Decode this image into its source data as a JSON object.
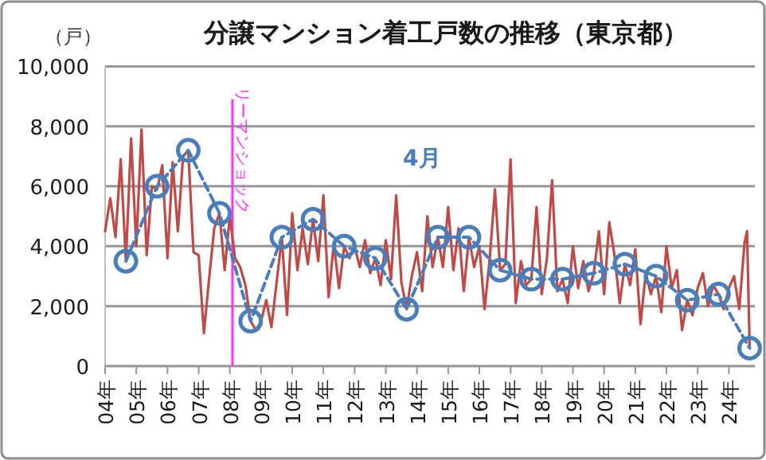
{
  "chart_data": {
    "type": "line",
    "title": "分譲マンション着工戸数の推移（東京都）",
    "ylabel": "（戸）",
    "xlim": [
      "2004-08",
      "2025-06"
    ],
    "xticks": [
      {
        "value": "2004-08",
        "label": "04年"
      },
      {
        "value": "2005-08",
        "label": "05年"
      },
      {
        "value": "2006-08",
        "label": "06年"
      },
      {
        "value": "2007-08",
        "label": "07年"
      },
      {
        "value": "2008-08",
        "label": "08年"
      },
      {
        "value": "2009-08",
        "label": "09年"
      },
      {
        "value": "2010-08",
        "label": "10年"
      },
      {
        "value": "2011-08",
        "label": "11年"
      },
      {
        "value": "2012-08",
        "label": "12年"
      },
      {
        "value": "2013-08",
        "label": "13年"
      },
      {
        "value": "2014-08",
        "label": "14年"
      },
      {
        "value": "2015-08",
        "label": "15年"
      },
      {
        "value": "2016-08",
        "label": "16年"
      },
      {
        "value": "2017-08",
        "label": "17年"
      },
      {
        "value": "2018-08",
        "label": "18年"
      },
      {
        "value": "2019-08",
        "label": "19年"
      },
      {
        "value": "2020-08",
        "label": "20年"
      },
      {
        "value": "2021-08",
        "label": "21年"
      },
      {
        "value": "2022-08",
        "label": "22年"
      },
      {
        "value": "2023-08",
        "label": "23年"
      },
      {
        "value": "2024-08",
        "label": "24年"
      }
    ],
    "ylim": [
      0,
      10000
    ],
    "yticks": [
      0,
      {
        "value": 2000,
        "label": "2,000"
      },
      {
        "value": 4000,
        "label": "4,000"
      },
      {
        "value": 6000,
        "label": "6,000"
      },
      {
        "value": 8000,
        "label": "8,000"
      },
      {
        "value": 10000,
        "label": "10,000"
      }
    ],
    "grid": "y",
    "ref_lines": [
      {
        "axis": "x",
        "value": "2008-09",
        "label": "リーマンショック",
        "color": "#ff33ff"
      }
    ],
    "series": [
      {
        "color": "#be4b48",
        "marker": "none",
        "line_style": "solid",
        "x": [
          "2004-08",
          "2004-10",
          "2004-12",
          "2005-02",
          "2005-04",
          "2005-06",
          "2005-08",
          "2005-10",
          "2005-12",
          "2006-02",
          "2006-04",
          "2006-06",
          "2006-08",
          "2006-10",
          "2006-12",
          "2007-02",
          "2007-04",
          "2007-06",
          "2007-08",
          "2007-10",
          "2007-12",
          "2008-02",
          "2008-04",
          "2008-06",
          "2008-08",
          "2008-10",
          "2008-12",
          "2009-02",
          "2009-04",
          "2009-06",
          "2009-08",
          "2009-10",
          "2009-12",
          "2010-02",
          "2010-04",
          "2010-06",
          "2010-08",
          "2010-10",
          "2010-12",
          "2011-02",
          "2011-04",
          "2011-06",
          "2011-08",
          "2011-10",
          "2011-12",
          "2012-02",
          "2012-04",
          "2012-06",
          "2012-08",
          "2012-10",
          "2012-12",
          "2013-02",
          "2013-04",
          "2013-06",
          "2013-08",
          "2013-10",
          "2013-12",
          "2014-02",
          "2014-04",
          "2014-06",
          "2014-08",
          "2014-10",
          "2014-12",
          "2015-02",
          "2015-04",
          "2015-06",
          "2015-08",
          "2015-10",
          "2015-12",
          "2016-02",
          "2016-04",
          "2016-06",
          "2016-08",
          "2016-10",
          "2016-12",
          "2017-02",
          "2017-04",
          "2017-06",
          "2017-08",
          "2017-10",
          "2017-12",
          "2018-02",
          "2018-04",
          "2018-06",
          "2018-08",
          "2018-10",
          "2018-12",
          "2019-02",
          "2019-04",
          "2019-06",
          "2019-08",
          "2019-10",
          "2019-12",
          "2020-02",
          "2020-04",
          "2020-06",
          "2020-08",
          "2020-10",
          "2020-12",
          "2021-02",
          "2021-04",
          "2021-06",
          "2021-08",
          "2021-10",
          "2021-12",
          "2022-02",
          "2022-04",
          "2022-06",
          "2022-08",
          "2022-10",
          "2022-12",
          "2023-02",
          "2023-04",
          "2023-06",
          "2023-08",
          "2023-10",
          "2023-12",
          "2024-02",
          "2024-04",
          "2024-06",
          "2024-08",
          "2024-10",
          "2024-12",
          "2025-02",
          "2025-03",
          "2025-04"
        ],
        "values": [
          4500,
          5600,
          4300,
          6900,
          3500,
          7600,
          4000,
          7900,
          3700,
          6000,
          5900,
          6700,
          3600,
          6800,
          4500,
          7000,
          7200,
          3800,
          3700,
          1100,
          2900,
          4600,
          5100,
          3200,
          5000,
          3600,
          3300,
          2700,
          1500,
          1200,
          1500,
          2200,
          1300,
          2800,
          4300,
          1700,
          5100,
          3200,
          4600,
          3400,
          4900,
          3500,
          5700,
          2300,
          4100,
          2600,
          4000,
          3600,
          4000,
          3300,
          4200,
          3100,
          3600,
          2700,
          4200,
          2900,
          5700,
          2800,
          1900,
          3000,
          3800,
          2500,
          5000,
          3300,
          4300,
          3300,
          5300,
          3200,
          4600,
          2500,
          4300,
          3300,
          4000,
          1900,
          3600,
          5900,
          3200,
          3400,
          6900,
          2100,
          3500,
          2700,
          2900,
          5300,
          2400,
          3600,
          6200,
          2500,
          2900,
          2100,
          4000,
          2600,
          3500,
          2500,
          3100,
          4500,
          2400,
          4800,
          3700,
          2100,
          3400,
          2700,
          3900,
          1400,
          3100,
          2400,
          3000,
          1800,
          4000,
          2600,
          3200,
          1200,
          2200,
          1700,
          2600,
          3100,
          2000,
          2700,
          2400,
          1900,
          2600,
          3000,
          1900,
          4100,
          4500,
          600
        ]
      },
      {
        "name": "4月",
        "color": "#4a7ebb",
        "marker": "circle",
        "line_style": "dashed",
        "x": [
          "2005-04",
          "2006-04",
          "2007-04",
          "2008-04",
          "2009-04",
          "2010-04",
          "2011-04",
          "2012-04",
          "2013-04",
          "2014-04",
          "2015-04",
          "2016-04",
          "2017-04",
          "2018-04",
          "2019-04",
          "2020-04",
          "2021-04",
          "2022-04",
          "2023-04",
          "2024-04",
          "2025-04"
        ],
        "values": [
          3500,
          6000,
          7200,
          5100,
          1500,
          4300,
          4900,
          4000,
          3600,
          1900,
          4300,
          4300,
          3200,
          2900,
          2900,
          3100,
          3400,
          3000,
          2200,
          2400,
          600
        ]
      }
    ]
  }
}
